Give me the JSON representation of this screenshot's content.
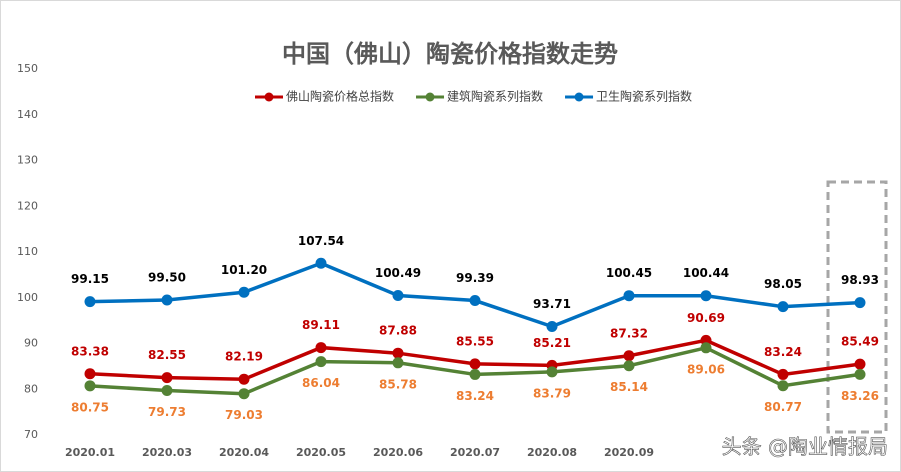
{
  "chart_data": {
    "type": "line",
    "title": "中国（佛山）陶瓷价格指数走势",
    "categories": [
      "2020.01",
      "2020.03",
      "2020.04",
      "2020.05",
      "2020.06",
      "2020.07",
      "2020.08",
      "2020.09",
      null,
      null,
      null
    ],
    "series": [
      {
        "name": "佛山陶瓷价格总指数",
        "color": "#c00000",
        "label_color": "#c00000",
        "label_pos": "above",
        "values": [
          83.38,
          82.55,
          82.19,
          89.11,
          87.88,
          85.55,
          85.21,
          87.32,
          90.69,
          83.24,
          85.49
        ]
      },
      {
        "name": "建筑陶瓷系列指数",
        "color": "#548235",
        "label_color": "#ed7d31",
        "label_pos": "below",
        "values": [
          80.75,
          79.73,
          79.03,
          86.04,
          85.78,
          83.24,
          83.79,
          85.14,
          89.06,
          80.77,
          83.26
        ]
      },
      {
        "name": "卫生陶瓷系列指数",
        "color": "#0070c0",
        "label_color": "#000000",
        "label_pos": "above",
        "values": [
          99.15,
          99.5,
          101.2,
          107.54,
          100.49,
          99.39,
          93.71,
          100.45,
          100.44,
          98.05,
          98.93
        ],
        "value_labels": [
          "99.15",
          "99.50",
          "101.20",
          "107.54",
          "100.49",
          "99.39",
          "93.71",
          "100.45",
          "100.44",
          "98.05",
          "98.93"
        ]
      }
    ],
    "ylim": [
      70,
      150
    ],
    "yticks": [
      70,
      80,
      90,
      100,
      110,
      120,
      130,
      140,
      150
    ],
    "grid": false,
    "legend": "top",
    "watermark": "头条 @陶业情报局"
  }
}
